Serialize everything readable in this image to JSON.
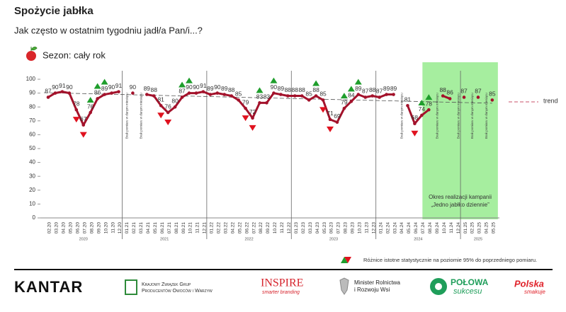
{
  "header": {
    "title": "Spożycie jabłka",
    "subtitle": "Jak często w ostatnim tygodniu jadł/a Pan/i...?",
    "season": "Sezon: cały rok"
  },
  "chart_data": {
    "type": "line",
    "categories": [
      "02.20",
      "03.20",
      "04.20",
      "05.20",
      "06.20",
      "07.20",
      "08.20",
      "09.20",
      "10.20",
      "11.20",
      "12.20",
      "01.21",
      "02.21",
      "03.21",
      "04.21",
      "05.21",
      "06.21",
      "07.21",
      "08.21",
      "09.21",
      "10.21",
      "11.21",
      "12.21",
      "01.22",
      "02.22",
      "03.22",
      "04.22",
      "05.22",
      "06.22",
      "07.22",
      "08.22",
      "09.22",
      "10.22",
      "11.22",
      "12.22",
      "01.23",
      "02.23",
      "03.23",
      "04.23",
      "05.23",
      "06.23",
      "07.23",
      "08.23",
      "09.23",
      "10.23",
      "11.23",
      "12.23",
      "01.24",
      "02.24",
      "03.24",
      "04.24",
      "05.24",
      "06.24",
      "07.24",
      "08.24",
      "09.24",
      "10.24",
      "11.24",
      "12.24",
      "01.25",
      "02.25",
      "03.25",
      "04.25",
      "05.25"
    ],
    "series": [
      {
        "color": "#a3122b",
        "values": [
          87,
          90,
          91,
          90,
          78,
          67,
          76,
          86,
          89,
          90,
          91,
          null,
          90,
          null,
          89,
          88,
          81,
          76,
          80,
          87,
          90,
          90,
          91,
          89,
          90,
          89,
          88,
          85,
          79,
          72,
          83,
          83,
          90,
          89,
          88,
          88,
          88,
          85,
          88,
          85,
          71,
          69,
          79,
          84,
          89,
          87,
          88,
          87,
          89,
          89,
          null,
          81,
          68,
          74,
          78,
          null,
          88,
          86,
          null,
          87,
          null,
          87,
          null,
          85
        ]
      }
    ],
    "significance": [
      null,
      null,
      null,
      null,
      "down",
      "down",
      "up",
      "up",
      "up",
      null,
      null,
      null,
      null,
      null,
      null,
      null,
      "down",
      "down",
      null,
      "up",
      "up",
      null,
      null,
      null,
      null,
      null,
      null,
      null,
      "down",
      "down",
      "up",
      null,
      "up",
      null,
      null,
      null,
      null,
      null,
      "up",
      "down",
      "down",
      null,
      "up",
      "up",
      "up",
      null,
      null,
      null,
      null,
      null,
      null,
      null,
      "down",
      "up",
      "up",
      null,
      null,
      null,
      null,
      null,
      null,
      null,
      null,
      null
    ],
    "up_color": "#1f9e2c",
    "down_color": "#e0121f",
    "significance_note": "Różnice istotne statystycznie na poziomie 95% do poprzedniego pomiaru.",
    "missing_label": "Brak pomiaru w danym miesiącu",
    "years": [
      "2020",
      "2021",
      "2022",
      "2023",
      "2024",
      "2025"
    ],
    "ylim": [
      0,
      100
    ],
    "yticks": [
      0,
      10,
      20,
      30,
      40,
      50,
      60,
      70,
      80,
      90,
      100
    ],
    "trend": {
      "label": "trend",
      "values": [
        90.3,
        82.7
      ],
      "color": "#c9506a"
    },
    "campaign": {
      "from": "07.24",
      "to": "05.25",
      "color": "#a6ee9f",
      "label": [
        "Okres realizacji kampanii",
        "„Jedno jabłko dziennie”"
      ]
    }
  },
  "footer": {
    "kantar": "KANTAR",
    "kzgpoiw": [
      "Krajowy Związek Grup",
      "Producentów Owoców i Warzyw"
    ],
    "inspire": "INSPIRE",
    "inspire_tag": "smarter branding",
    "ministry": [
      "Minister Rolnictwa",
      "i Rozwoju Wsi"
    ],
    "polowa": "POŁOWA",
    "polowa_tag": "sukcesu",
    "polska": "Polska",
    "polska_tag": "smakuje"
  }
}
